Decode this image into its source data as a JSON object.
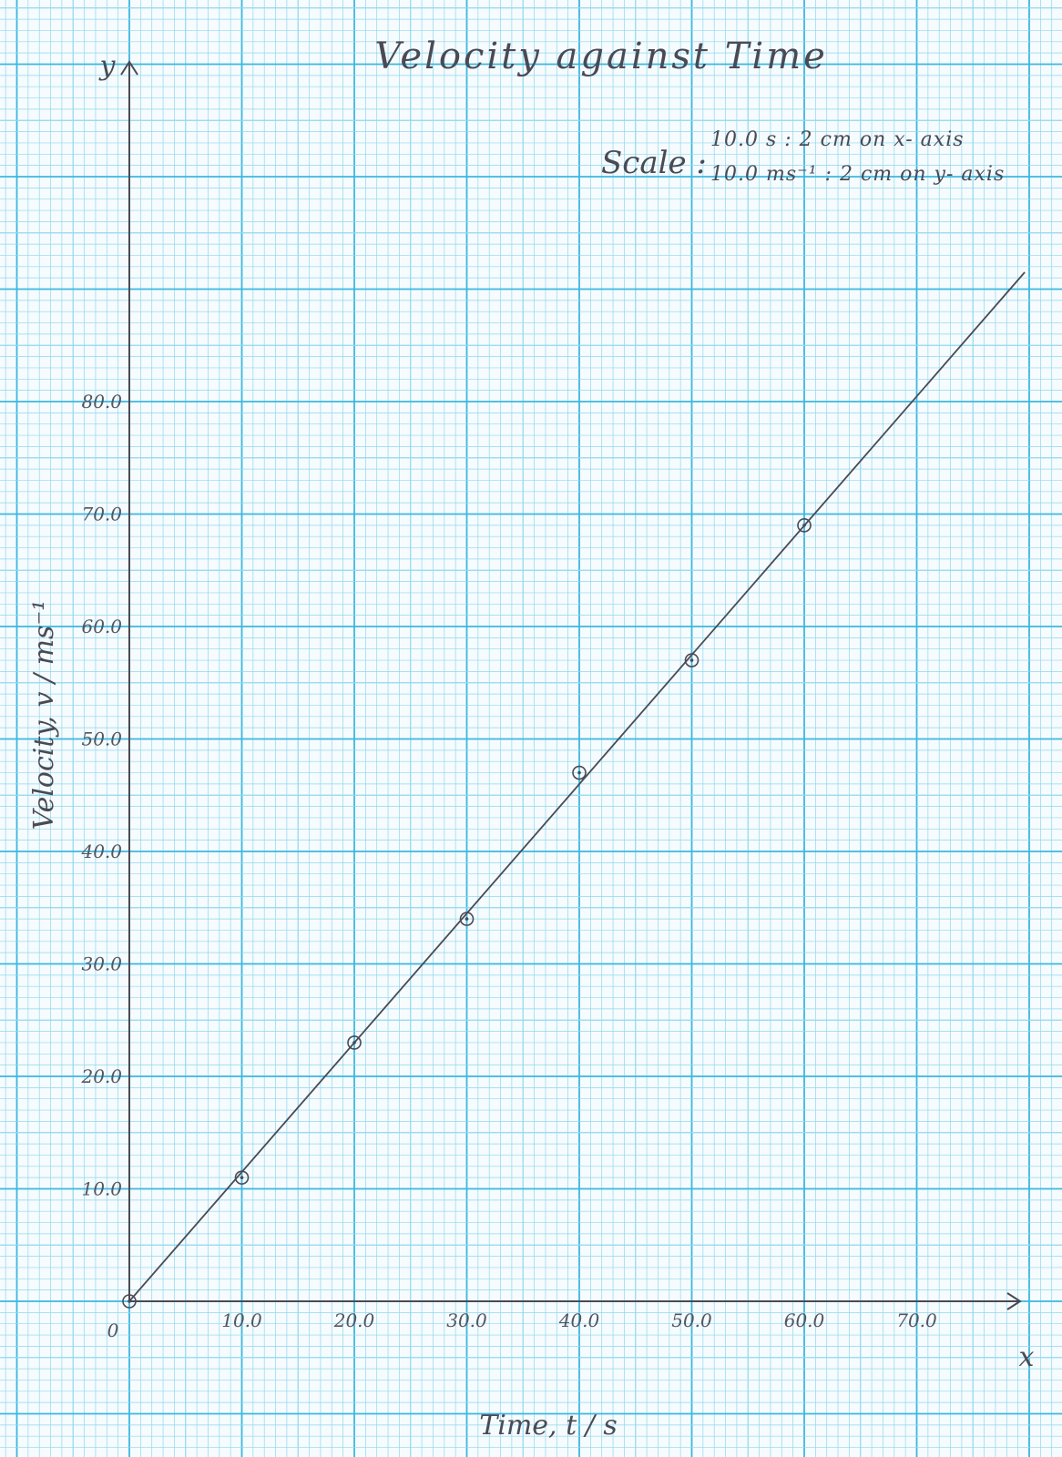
{
  "chart_data": {
    "type": "scatter",
    "title": "Velocity against Time",
    "xlabel": "Time, t / s",
    "ylabel": "Velocity, v / ms⁻¹",
    "axis_x_letter": "x",
    "axis_y_letter": "y",
    "origin_label": "0",
    "xlim": [
      0,
      80
    ],
    "ylim": [
      0,
      95
    ],
    "x_ticks": [
      10,
      20,
      30,
      40,
      50,
      60,
      70
    ],
    "x_tick_labels": [
      "10.0",
      "20.0",
      "30.0",
      "40.0",
      "50.0",
      "60.0",
      "70.0"
    ],
    "y_ticks": [
      10,
      20,
      30,
      40,
      50,
      60,
      70,
      80
    ],
    "y_tick_labels": [
      "10.0",
      "20.0",
      "30.0",
      "40.0",
      "50.0",
      "60.0",
      "70.0",
      "80.0"
    ],
    "points": [
      {
        "x": 0,
        "y": 0
      },
      {
        "x": 10,
        "y": 11
      },
      {
        "x": 20,
        "y": 23
      },
      {
        "x": 30,
        "y": 34
      },
      {
        "x": 40,
        "y": 47
      },
      {
        "x": 50,
        "y": 57
      },
      {
        "x": 60,
        "y": 69
      }
    ],
    "best_fit_line": {
      "from": [
        0,
        0
      ],
      "to": [
        79.6,
        91.5
      ]
    },
    "grid": true,
    "scale": {
      "label": "Scale :",
      "lines": [
        "10.0 s     : 2 cm  on x- axis",
        "10.0 ms⁻¹ : 2 cm  on y- axis"
      ]
    },
    "colors": {
      "grid_minor": "#8fd8ee",
      "grid_major": "#3bb8df",
      "ink": "#4a4a55",
      "paper": "#f6fbfd"
    }
  }
}
